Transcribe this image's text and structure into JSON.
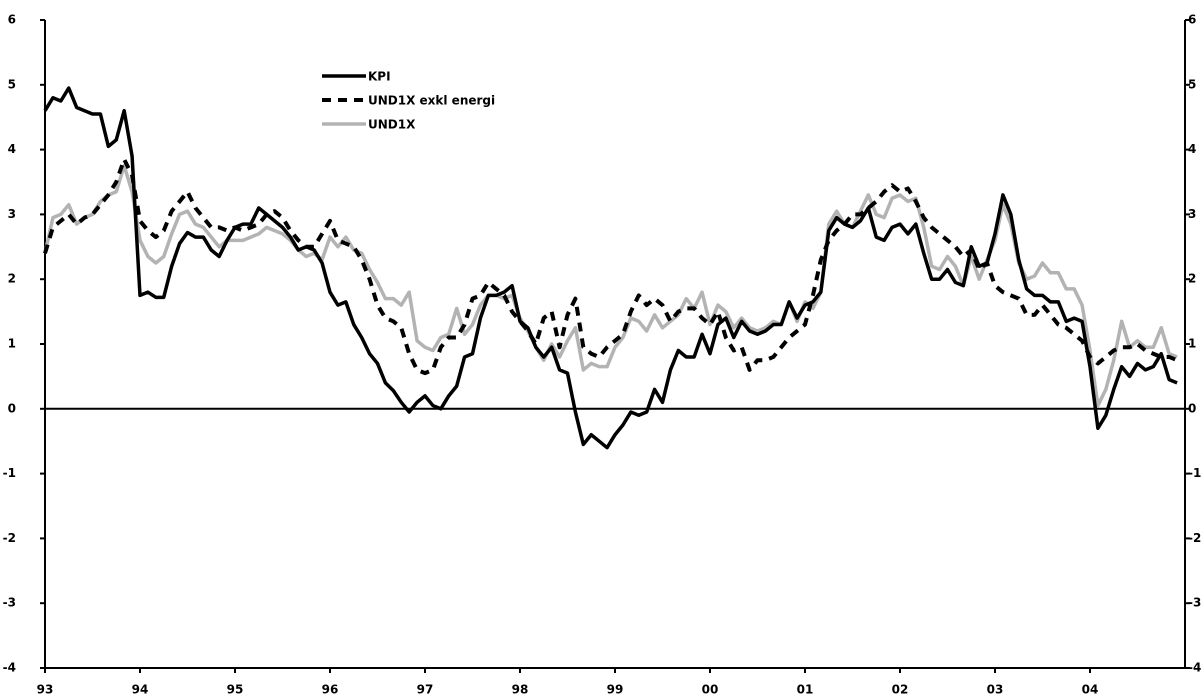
{
  "chart_data": {
    "type": "line",
    "categories": [
      "93",
      null,
      null,
      null,
      null,
      null,
      null,
      null,
      null,
      null,
      null,
      null,
      "94",
      null,
      null,
      null,
      null,
      null,
      null,
      null,
      null,
      null,
      null,
      null,
      "95",
      null,
      null,
      null,
      null,
      null,
      null,
      null,
      null,
      null,
      null,
      null,
      "96",
      null,
      null,
      null,
      null,
      null,
      null,
      null,
      null,
      null,
      null,
      null,
      "97",
      null,
      null,
      null,
      null,
      null,
      null,
      null,
      null,
      null,
      null,
      null,
      "98",
      null,
      null,
      null,
      null,
      null,
      null,
      null,
      null,
      null,
      null,
      null,
      "99",
      null,
      null,
      null,
      null,
      null,
      null,
      null,
      null,
      null,
      null,
      null,
      "00",
      null,
      null,
      null,
      null,
      null,
      null,
      null,
      null,
      null,
      null,
      null,
      "01",
      null,
      null,
      null,
      null,
      null,
      null,
      null,
      null,
      null,
      null,
      null,
      "02",
      null,
      null,
      null,
      null,
      null,
      null,
      null,
      null,
      null,
      null,
      null,
      "03",
      null,
      null,
      null,
      null,
      null,
      null,
      null,
      null,
      null,
      null,
      null,
      "04",
      null,
      null,
      null,
      null,
      null,
      null,
      null,
      null,
      null,
      null,
      null
    ],
    "series": [
      {
        "name": "KPI",
        "color": "#000000",
        "line_style": "solid",
        "values": [
          4.6,
          4.8,
          4.75,
          4.95,
          4.65,
          4.6,
          4.55,
          4.55,
          4.05,
          4.15,
          4.6,
          3.9,
          1.75,
          1.8,
          1.72,
          1.72,
          2.2,
          2.55,
          2.72,
          2.65,
          2.65,
          2.45,
          2.35,
          2.6,
          2.8,
          2.85,
          2.85,
          3.1,
          3.0,
          2.9,
          2.8,
          2.65,
          2.45,
          2.5,
          2.45,
          2.25,
          1.8,
          1.6,
          1.65,
          1.3,
          1.1,
          0.85,
          0.7,
          0.4,
          0.28,
          0.1,
          -0.05,
          0.1,
          0.2,
          0.05,
          0.0,
          0.2,
          0.35,
          0.8,
          0.85,
          1.4,
          1.75,
          1.75,
          1.8,
          1.9,
          1.35,
          1.25,
          0.95,
          0.8,
          0.95,
          0.6,
          0.55,
          -0.05,
          -0.55,
          -0.4,
          -0.5,
          -0.6,
          -0.4,
          -0.25,
          -0.05,
          -0.1,
          -0.05,
          0.3,
          0.1,
          0.6,
          0.9,
          0.8,
          0.8,
          1.15,
          0.85,
          1.3,
          1.4,
          1.1,
          1.35,
          1.2,
          1.15,
          1.2,
          1.3,
          1.3,
          1.65,
          1.4,
          1.6,
          1.65,
          1.8,
          2.75,
          2.95,
          2.85,
          2.8,
          2.9,
          3.1,
          2.65,
          2.6,
          2.8,
          2.85,
          2.7,
          2.85,
          2.4,
          2.0,
          2.0,
          2.15,
          1.95,
          1.9,
          2.5,
          2.2,
          2.25,
          2.7,
          3.3,
          3.0,
          2.3,
          1.85,
          1.75,
          1.75,
          1.65,
          1.65,
          1.35,
          1.4,
          1.35,
          0.65,
          -0.3,
          -0.1,
          0.3,
          0.65,
          0.5,
          0.7,
          0.6,
          0.65,
          0.85,
          0.45,
          0.4
        ]
      },
      {
        "name": "UND1X exkl energi",
        "color": "#000000",
        "line_style": "dashed",
        "values": [
          2.4,
          2.8,
          2.9,
          3.0,
          2.85,
          2.95,
          3.0,
          3.15,
          3.3,
          3.5,
          3.85,
          3.6,
          2.9,
          2.75,
          2.65,
          2.75,
          3.05,
          3.2,
          3.35,
          3.1,
          2.95,
          2.8,
          2.8,
          2.75,
          2.8,
          2.75,
          2.8,
          2.85,
          3.0,
          3.05,
          2.95,
          2.75,
          2.6,
          2.5,
          2.5,
          2.7,
          2.9,
          2.6,
          2.55,
          2.5,
          2.3,
          2.0,
          1.6,
          1.4,
          1.35,
          1.25,
          0.85,
          0.6,
          0.55,
          0.6,
          0.95,
          1.1,
          1.1,
          1.3,
          1.7,
          1.75,
          1.95,
          1.85,
          1.75,
          1.5,
          1.35,
          1.2,
          1.0,
          1.4,
          1.5,
          0.95,
          1.45,
          1.7,
          0.95,
          0.85,
          0.8,
          0.95,
          1.05,
          1.15,
          1.5,
          1.75,
          1.6,
          1.7,
          1.6,
          1.35,
          1.5,
          1.55,
          1.55,
          1.4,
          1.3,
          1.5,
          1.1,
          0.9,
          0.95,
          0.6,
          0.75,
          0.75,
          0.8,
          0.95,
          1.1,
          1.2,
          1.3,
          1.75,
          2.3,
          2.6,
          2.75,
          2.85,
          3.0,
          3.0,
          3.1,
          3.2,
          3.35,
          3.45,
          3.35,
          3.4,
          3.2,
          2.95,
          2.8,
          2.7,
          2.6,
          2.5,
          2.35,
          2.45,
          2.15,
          2.25,
          1.9,
          1.8,
          1.75,
          1.7,
          1.45,
          1.45,
          1.6,
          1.45,
          1.3,
          1.25,
          1.15,
          1.05,
          0.8,
          0.7,
          0.8,
          0.9,
          0.95,
          0.95,
          1.0,
          0.9,
          0.85,
          0.8,
          0.8,
          0.75
        ]
      },
      {
        "name": "UND1X",
        "color": "#b3b3b3",
        "line_style": "solid",
        "values": [
          2.4,
          2.95,
          3.0,
          3.15,
          2.85,
          2.95,
          3.0,
          3.2,
          3.3,
          3.35,
          3.75,
          3.35,
          2.6,
          2.35,
          2.25,
          2.35,
          2.7,
          3.0,
          3.05,
          2.85,
          2.8,
          2.65,
          2.5,
          2.6,
          2.6,
          2.6,
          2.65,
          2.7,
          2.8,
          2.75,
          2.7,
          2.6,
          2.45,
          2.35,
          2.4,
          2.3,
          2.65,
          2.5,
          2.65,
          2.45,
          2.4,
          2.15,
          1.95,
          1.7,
          1.7,
          1.6,
          1.8,
          1.05,
          0.95,
          0.9,
          1.1,
          1.15,
          1.55,
          1.15,
          1.3,
          1.6,
          1.75,
          1.75,
          1.7,
          1.75,
          1.4,
          1.2,
          0.95,
          0.75,
          1.0,
          0.8,
          1.05,
          1.25,
          0.6,
          0.7,
          0.65,
          0.65,
          0.95,
          1.1,
          1.4,
          1.35,
          1.2,
          1.45,
          1.25,
          1.35,
          1.45,
          1.7,
          1.55,
          1.8,
          1.3,
          1.6,
          1.5,
          1.25,
          1.4,
          1.25,
          1.2,
          1.25,
          1.35,
          1.3,
          1.65,
          1.35,
          1.65,
          1.55,
          1.8,
          2.85,
          3.05,
          2.85,
          2.8,
          3.05,
          3.3,
          3.0,
          2.95,
          3.25,
          3.3,
          3.2,
          3.25,
          2.8,
          2.2,
          2.15,
          2.35,
          2.2,
          1.9,
          2.35,
          2.0,
          2.3,
          2.6,
          3.15,
          2.85,
          2.25,
          2.0,
          2.05,
          2.25,
          2.1,
          2.1,
          1.85,
          1.85,
          1.6,
          0.9,
          0.05,
          0.3,
          0.75,
          1.35,
          0.95,
          1.05,
          0.95,
          0.95,
          1.25,
          0.85,
          0.8
        ]
      }
    ],
    "ylim": [
      -4,
      6
    ],
    "yticks": [
      -4,
      -3,
      -2,
      -1,
      0,
      1,
      2,
      3,
      4,
      5,
      6
    ],
    "right_axis": true,
    "grid": false
  }
}
